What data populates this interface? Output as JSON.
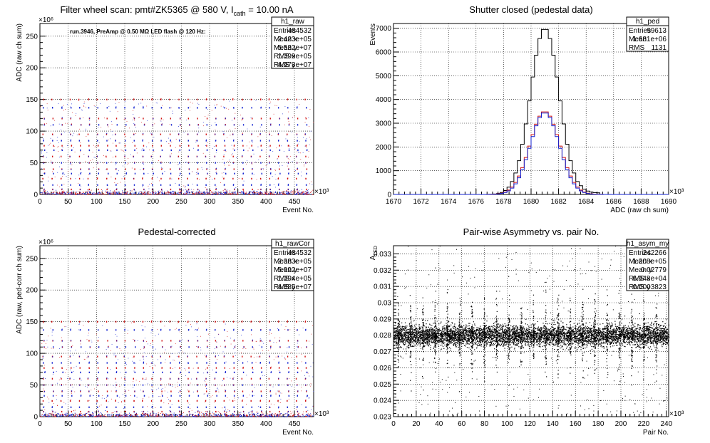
{
  "chart_data": [
    {
      "id": "raw",
      "type": "scatter",
      "title_pre": "Filter wheel scan: pmt#ZK5365 @   580 V, I",
      "title_sub": "cath",
      "title_post": " = 10.00 nA",
      "xlabel": "Event No.",
      "ylabel": "ADC (raw ch sum)",
      "x_exponent": "×10³",
      "y_exponent": "×10⁶",
      "xlim": [
        0,
        484
      ],
      "ylim": [
        0,
        270
      ],
      "xticks": [
        "0",
        "50",
        "100",
        "150",
        "200",
        "250",
        "300",
        "350",
        "400",
        "450"
      ],
      "yticks": [
        "0",
        "50",
        "100",
        "150",
        "200",
        "250"
      ],
      "grid": true,
      "annotation": "run.3946, PreAmp @ 0.50 MΩ LED flash @  120 Hz:",
      "stats_title": "h1_raw",
      "stats": [
        [
          "Entries",
          "484532"
        ],
        [
          "Mean x",
          "2.423e+05"
        ],
        [
          "Mean y",
          "5.532e+07"
        ],
        [
          "RMS x",
          "1.399e+05"
        ],
        [
          "RMS y",
          "4.973e+07"
        ]
      ],
      "levels": [
        150,
        137,
        120,
        110,
        95,
        85,
        77,
        70,
        60,
        50,
        40,
        33,
        25,
        15,
        8,
        3
      ],
      "level_colors": [
        "#d01010",
        "#1020d0"
      ]
    },
    {
      "id": "ped",
      "type": "line",
      "title": "Shutter closed (pedestal data)",
      "xlabel": "ADC (raw ch sum)",
      "ylabel": "Events",
      "x_exponent": "×10³",
      "xlim": [
        1670,
        1690
      ],
      "ylim": [
        0,
        7200
      ],
      "xticks": [
        "1670",
        "1672",
        "1674",
        "1676",
        "1678",
        "1680",
        "1682",
        "1684",
        "1686",
        "1688",
        "1690"
      ],
      "yticks": [
        "0",
        "1000",
        "2000",
        "3000",
        "4000",
        "5000",
        "6000",
        "7000"
      ],
      "grid": true,
      "stats_title": "h1_ped",
      "stats": [
        [
          "Entries",
          "99613"
        ],
        [
          "Mean",
          "1.681e+06"
        ],
        [
          "RMS",
          "1131"
        ]
      ],
      "series": [
        {
          "color": "#000000",
          "peak": 7000,
          "center": 1681,
          "sigma": 1.05
        },
        {
          "color": "#d01010",
          "peak": 3500,
          "center": 1681,
          "sigma": 1.08
        },
        {
          "color": "#1020d0",
          "peak": 3450,
          "center": 1681,
          "sigma": 1.05
        }
      ]
    },
    {
      "id": "rawCor",
      "type": "scatter",
      "title": "Pedestal-corrected",
      "xlabel": "Event No.",
      "ylabel": "ADC (raw, ped-corr ch sum)",
      "x_exponent": "×10³",
      "y_exponent": "×10⁶",
      "xlim": [
        0,
        484
      ],
      "ylim": [
        0,
        270
      ],
      "xticks": [
        "0",
        "50",
        "100",
        "150",
        "200",
        "250",
        "300",
        "350",
        "400",
        "450"
      ],
      "yticks": [
        "0",
        "50",
        "100",
        "150",
        "200",
        "250"
      ],
      "grid": true,
      "stats_title": "h1_rawCor",
      "stats": [
        [
          "Entries",
          "484532"
        ],
        [
          "Mean x",
          "2.383e+05"
        ],
        [
          "Mean y",
          "5.992e+07"
        ],
        [
          "RMS x",
          "1.394e+05"
        ],
        [
          "RMS y",
          "4.885e+07"
        ]
      ],
      "levels": [
        150,
        137,
        120,
        110,
        95,
        85,
        77,
        70,
        60,
        50,
        40,
        33,
        25,
        15,
        8,
        3
      ],
      "level_colors": [
        "#d01010",
        "#1020d0"
      ]
    },
    {
      "id": "asym",
      "type": "scatter",
      "title": "Pair-wise Asymmetry vs. pair No.",
      "xlabel": "Pair No.",
      "ylabel": "A",
      "ylabel_sub": "LED",
      "x_exponent": "×10³",
      "xlim": [
        0,
        242
      ],
      "ylim": [
        0.023,
        0.0335
      ],
      "xticks": [
        "0",
        "20",
        "40",
        "60",
        "80",
        "100",
        "120",
        "140",
        "160",
        "180",
        "200",
        "220",
        "240"
      ],
      "yticks": [
        "0.023",
        "0.024",
        "0.025",
        "0.026",
        "0.027",
        "0.028",
        "0.029",
        "0.03",
        "0.031",
        "0.032",
        "0.033"
      ],
      "grid": true,
      "stats_title": "h1_asym_my",
      "stats": [
        [
          "Entries",
          "242266"
        ],
        [
          "Mean x",
          "1.208e+05"
        ],
        [
          "Mean y",
          "0.02779"
        ],
        [
          "RMS x",
          "6.948e+04"
        ],
        [
          "RMS y",
          "0.0003823"
        ]
      ],
      "band_center": 0.028,
      "band_halfwidth": 0.0007
    }
  ]
}
